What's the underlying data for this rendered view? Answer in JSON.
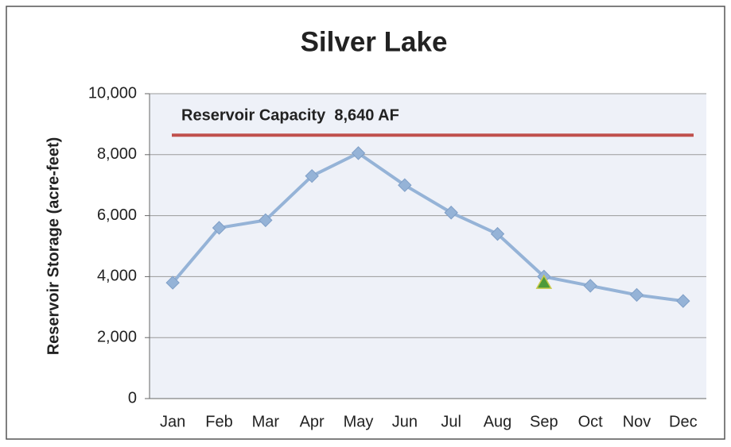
{
  "chart_data": {
    "type": "line",
    "title": "Silver Lake",
    "y_label": "Reservoir Storage (acre-feet)",
    "categories": [
      "Jan",
      "Feb",
      "Mar",
      "Apr",
      "May",
      "Jun",
      "Jul",
      "Aug",
      "Sep",
      "Oct",
      "Nov",
      "Dec"
    ],
    "series": [
      {
        "color": "#95b3d7",
        "marker": "diamond",
        "values": [
          3800,
          5600,
          5850,
          7300,
          8050,
          7000,
          6100,
          5400,
          4000,
          3700,
          3400,
          3200
        ]
      },
      {
        "color": "#4e9a3a",
        "marker": "triangle",
        "values": [
          null,
          null,
          null,
          null,
          null,
          null,
          null,
          null,
          3800,
          null,
          null,
          null
        ]
      }
    ],
    "reference_line": {
      "value": 8640,
      "label": "Reservoir Capacity  8,640 AF",
      "color": "#c0504d"
    },
    "ylim": [
      0,
      10000
    ],
    "yticks": [
      0,
      {
        "value": 2000,
        "label": "2,000"
      },
      {
        "value": 4000,
        "label": "4,000"
      },
      {
        "value": 6000,
        "label": "6,000"
      },
      {
        "value": 8000,
        "label": "8,000"
      },
      {
        "value": 10000,
        "label": "10,000"
      }
    ],
    "grid": true
  }
}
